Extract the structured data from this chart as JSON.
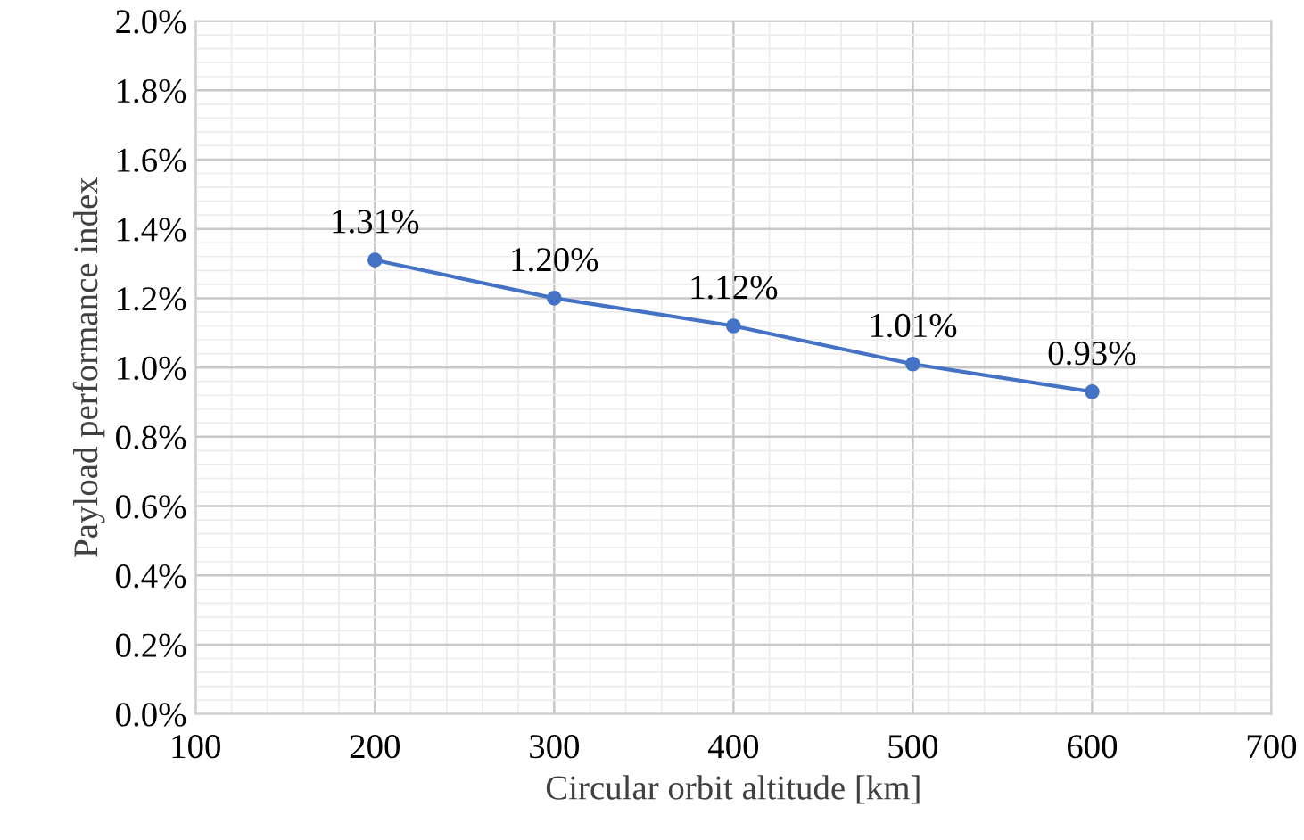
{
  "chart_data": {
    "type": "line",
    "xlabel": "Circular orbit altitude [km]",
    "ylabel": "Payload performance index",
    "x": [
      200,
      300,
      400,
      500,
      600
    ],
    "series": [
      {
        "color": "#4472c4",
        "values": [
          1.31,
          1.2,
          1.12,
          1.01,
          0.93
        ],
        "value_labels": [
          "1.31%",
          "1.20%",
          "1.12%",
          "1.01%",
          "0.93%"
        ]
      }
    ],
    "xlim": [
      100,
      700
    ],
    "xticks": [
      100,
      200,
      300,
      400,
      500,
      600,
      700
    ],
    "ylim": [
      0,
      2.0
    ],
    "yticks": [
      {
        "value": 0,
        "label": "0.0%"
      },
      {
        "value": 0.2,
        "label": "0.2%"
      },
      {
        "value": 0.4,
        "label": "0.4%"
      },
      {
        "value": 0.6,
        "label": "0.6%"
      },
      {
        "value": 0.8,
        "label": "0.8%"
      },
      {
        "value": 1.0,
        "label": "1.0%"
      },
      {
        "value": 1.2,
        "label": "1.2%"
      },
      {
        "value": 1.4,
        "label": "1.4%"
      },
      {
        "value": 1.6,
        "label": "1.6%"
      },
      {
        "value": 1.8,
        "label": "1.8%"
      },
      {
        "value": 2.0,
        "label": "2.0%"
      }
    ],
    "grid": true,
    "marker": "circle",
    "line_style": "solid",
    "legend": false
  }
}
